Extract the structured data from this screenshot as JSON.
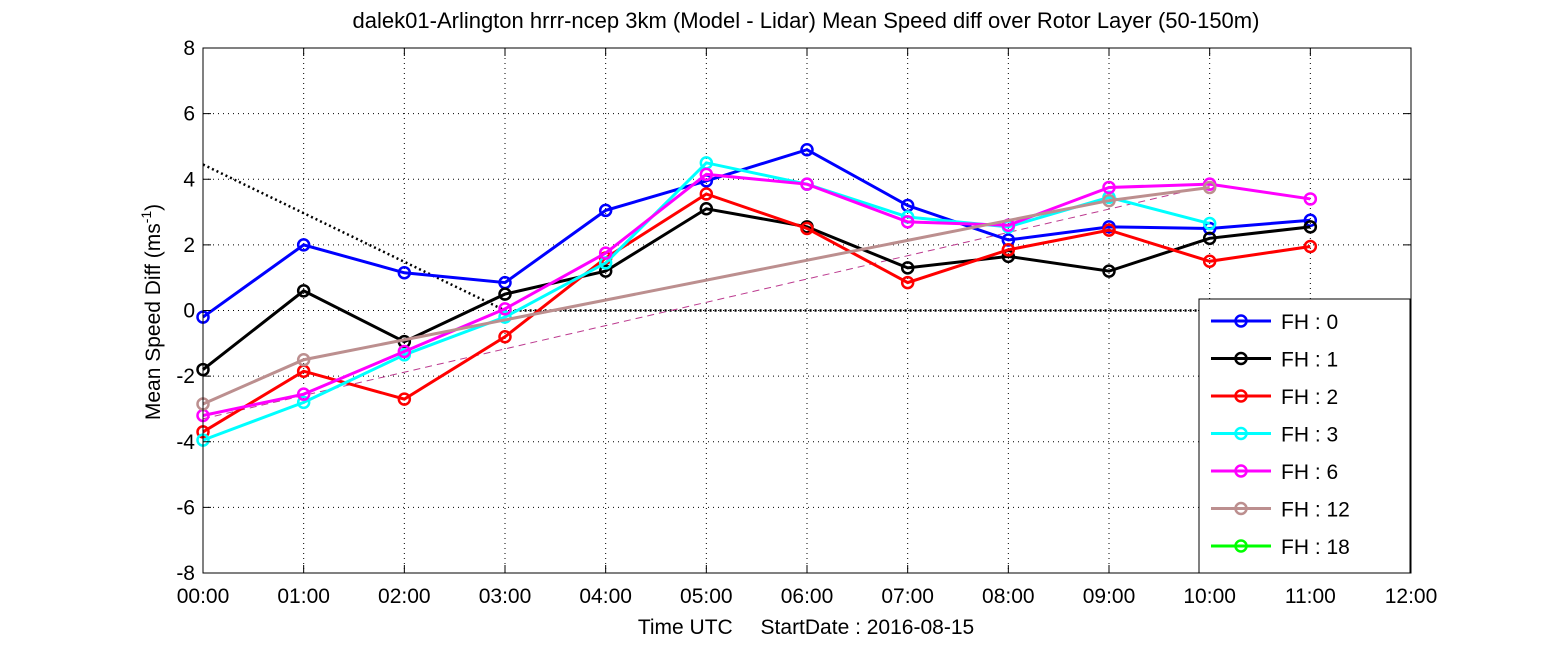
{
  "chart_data": {
    "type": "line",
    "title": "dalek01-Arlington hrrr-ncep 3km (Model - Lidar) Mean Speed diff over Rotor Layer (50-150m)",
    "xlabel": "Time UTC",
    "xlabel_extra": "StartDate : 2016-08-15",
    "ylabel_main": "Mean Speed Diff (ms",
    "ylabel_sup": "-1",
    "ylabel_close": ")",
    "xlim": [
      0,
      12
    ],
    "ylim": [
      -8,
      8
    ],
    "x_ticks": [
      0,
      1,
      2,
      3,
      4,
      5,
      6,
      7,
      8,
      9,
      10,
      11,
      12
    ],
    "x_tick_labels": [
      "00:00",
      "01:00",
      "02:00",
      "03:00",
      "04:00",
      "05:00",
      "06:00",
      "07:00",
      "08:00",
      "09:00",
      "10:00",
      "11:00",
      "12:00"
    ],
    "y_ticks": [
      -8,
      -6,
      -4,
      -2,
      0,
      2,
      4,
      6,
      8
    ],
    "y_tick_labels": [
      "-8",
      "-6",
      "-4",
      "-2",
      "0",
      "2",
      "4",
      "6",
      "8"
    ],
    "grid": true,
    "legend_position": "bottom-right",
    "series": [
      {
        "name": "FH : 0",
        "color": "#0000ff",
        "x": [
          0,
          1,
          2,
          3,
          4,
          5,
          6,
          7,
          8,
          9,
          10,
          11
        ],
        "values": [
          -0.2,
          2.0,
          1.15,
          0.85,
          3.05,
          3.95,
          4.9,
          3.2,
          2.15,
          2.55,
          2.5,
          2.75
        ]
      },
      {
        "name": "FH : 1",
        "color": "#000000",
        "x": [
          0,
          1,
          2,
          3,
          4,
          5,
          6,
          7,
          8,
          9,
          10,
          11
        ],
        "values": [
          -1.8,
          0.6,
          -0.95,
          0.5,
          1.2,
          3.1,
          2.55,
          1.3,
          1.65,
          1.2,
          2.2,
          2.55
        ]
      },
      {
        "name": "FH : 2",
        "color": "#ff0000",
        "x": [
          0,
          1,
          2,
          3,
          4,
          5,
          6,
          7,
          8,
          9,
          10,
          11
        ],
        "values": [
          -3.7,
          -1.85,
          -2.7,
          -0.8,
          1.6,
          3.55,
          2.5,
          0.85,
          1.85,
          2.45,
          1.5,
          1.95
        ]
      },
      {
        "name": "FH : 3",
        "color": "#00ffff",
        "x": [
          0,
          1,
          2,
          3,
          4,
          5,
          6,
          7,
          8,
          9,
          10
        ],
        "values": [
          -3.95,
          -2.8,
          -1.35,
          -0.2,
          1.45,
          4.5,
          3.85,
          2.85,
          2.55,
          3.45,
          2.65
        ]
      },
      {
        "name": "FH : 6",
        "color": "#ff00ff",
        "x": [
          0,
          1,
          2,
          3,
          4,
          5,
          6,
          7,
          8,
          9,
          10,
          11
        ],
        "values": [
          -3.2,
          -2.55,
          -1.25,
          0.05,
          1.75,
          4.15,
          3.85,
          2.7,
          2.6,
          3.75,
          3.85,
          3.4
        ]
      },
      {
        "name": "FH : 12",
        "color": "#bc8f8f",
        "x": [
          0,
          1,
          9,
          10
        ],
        "values": [
          -2.85,
          -1.5,
          3.35,
          3.75
        ]
      },
      {
        "name": "FH : 18",
        "color": "#00ff00",
        "x": [],
        "values": []
      }
    ],
    "annotations": [
      {
        "type": "dotted-line",
        "color": "#000000",
        "x": [
          0,
          3,
          12
        ],
        "values": [
          4.45,
          0,
          0
        ]
      },
      {
        "type": "dashed-line",
        "color": "#bc3a8f",
        "x": [
          0,
          10
        ],
        "values": [
          -3.3,
          3.8
        ]
      }
    ]
  }
}
